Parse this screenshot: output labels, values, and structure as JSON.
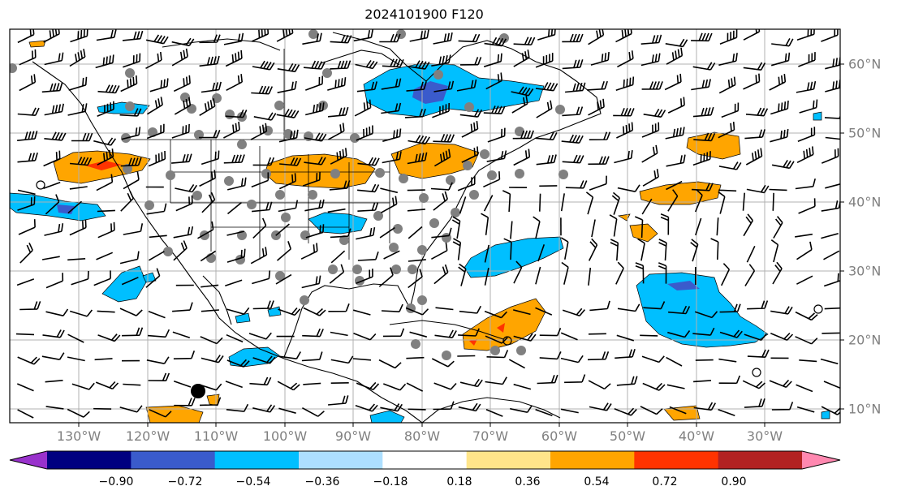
{
  "title": "2024101900 F120",
  "map": {
    "lon_labels": [
      "130°W",
      "120°W",
      "110°W",
      "100°W",
      "90°W",
      "80°W",
      "70°W",
      "60°W",
      "50°W",
      "40°W",
      "30°W"
    ],
    "lat_labels": [
      "60°N",
      "50°N",
      "40°N",
      "30°N",
      "20°N",
      "10°N"
    ]
  },
  "colorbar": {
    "ticks": [
      "−0.90",
      "−0.72",
      "−0.54",
      "−0.36",
      "−0.18",
      "0.18",
      "0.36",
      "0.54",
      "0.72",
      "0.90"
    ],
    "colors": [
      "#9932CC",
      "#000080",
      "#3A5BCC",
      "#00BFFF",
      "#ADDFFF",
      "#FFFFFF",
      "#FFE58A",
      "#FFA500",
      "#FF3300",
      "#B22222",
      "#FF88B0"
    ]
  }
}
